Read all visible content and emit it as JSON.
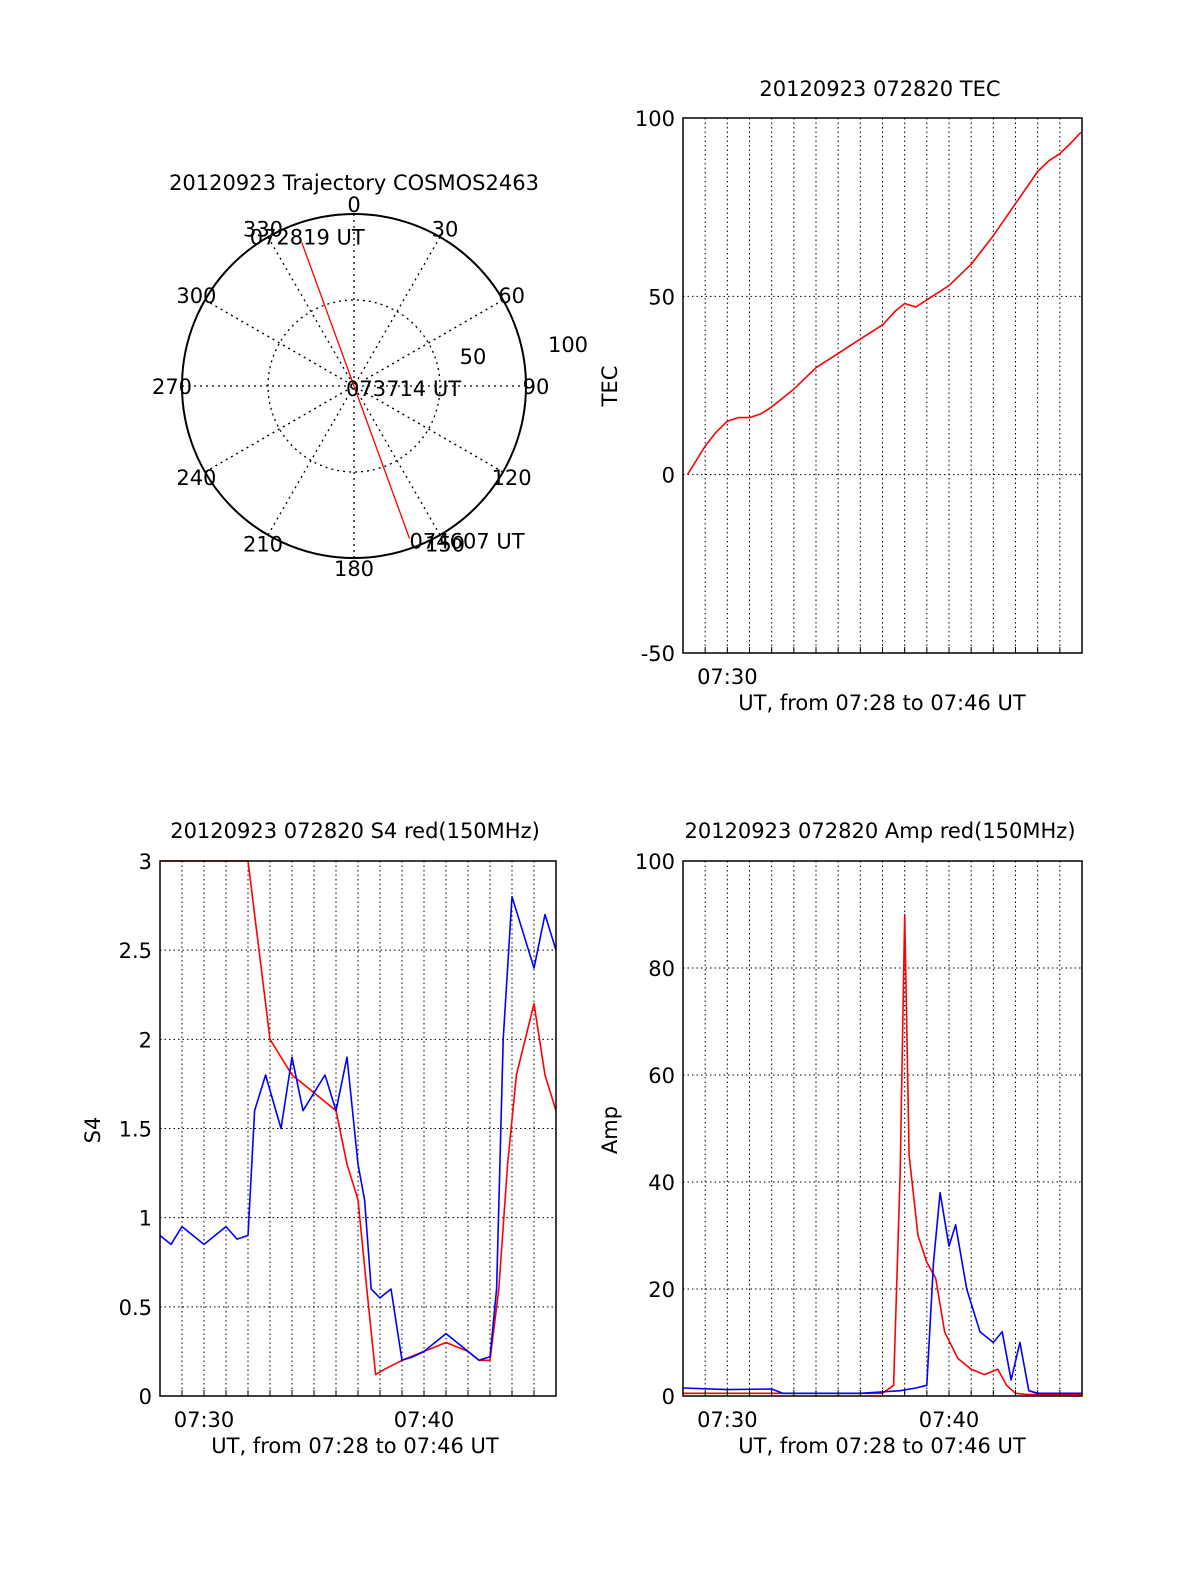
{
  "chart_data": [
    {
      "type": "polar",
      "title": "20120923 Trajectory COSMOS2463",
      "angle_labels": [
        "0",
        "30",
        "60",
        "90",
        "120",
        "150",
        "180",
        "210",
        "240",
        "270",
        "300",
        "330"
      ],
      "radial_labels": [
        "50",
        "100"
      ],
      "rlim": [
        0,
        100
      ],
      "grid": true,
      "trajectory": [
        {
          "label": "072819 UT",
          "azimuth": 340,
          "elevation": 10
        },
        {
          "label": "073714 UT",
          "azimuth": 155,
          "elevation": 96
        },
        {
          "label": "074607 UT",
          "azimuth": 160,
          "elevation": 5
        }
      ],
      "colors": {
        "trajectory": "#ff0000"
      }
    },
    {
      "type": "line",
      "title": "20120923 072820 TEC",
      "xlabel": "UT, from 07:28 to 07:46 UT",
      "ylabel": "TEC",
      "x_tick_labels": [
        "07:30"
      ],
      "y_tick_labels": [
        "-50",
        "0",
        "50",
        "100"
      ],
      "xlim_minutes": [
        28.0,
        46.0
      ],
      "ylim": [
        -50,
        100
      ],
      "grid": true,
      "series": [
        {
          "color": "#ff0000",
          "x_minutes": [
            28.2,
            28.5,
            29.0,
            29.5,
            30.0,
            30.5,
            31.0,
            31.5,
            32.0,
            33.0,
            34.0,
            35.0,
            36.0,
            37.0,
            37.6,
            38.0,
            38.5,
            39.0,
            40.0,
            41.0,
            42.0,
            43.0,
            44.0,
            44.5,
            45.0,
            45.5,
            45.95
          ],
          "values": [
            0,
            3,
            8,
            12,
            15,
            16,
            16,
            17,
            19,
            24,
            30,
            34,
            38,
            42,
            46,
            48,
            47,
            49,
            53,
            59,
            67,
            76,
            85,
            88,
            90,
            93,
            96
          ]
        }
      ]
    },
    {
      "type": "line",
      "title": "20120923 072820 S4 red(150MHz)",
      "xlabel": "UT, from 07:28 to 07:46 UT",
      "ylabel": "S4",
      "x_tick_labels": [
        "07:30",
        "07:40"
      ],
      "y_tick_labels": [
        "0",
        "0.5",
        "1",
        "1.5",
        "2",
        "2.5",
        "3"
      ],
      "xlim_minutes": [
        28.0,
        46.0
      ],
      "ylim": [
        0,
        3
      ],
      "grid": true,
      "series": [
        {
          "color": "#ff0000",
          "x_minutes": [
            28.0,
            29.0,
            30.0,
            31.0,
            32.0,
            32.5,
            33.0,
            34.0,
            35.0,
            36.0,
            36.5,
            37.0,
            37.4,
            37.8,
            38.2,
            39.0,
            40.0,
            41.0,
            42.0,
            42.5,
            43.0,
            43.4,
            43.8,
            44.2,
            45.0,
            45.5,
            46.0
          ],
          "values": [
            3.0,
            3.0,
            3.0,
            3.0,
            3.0,
            2.5,
            2.0,
            1.8,
            1.7,
            1.6,
            1.3,
            1.1,
            0.6,
            0.12,
            0.15,
            0.2,
            0.25,
            0.3,
            0.25,
            0.2,
            0.2,
            0.6,
            1.3,
            1.8,
            2.2,
            1.8,
            1.6
          ]
        },
        {
          "color": "#0000ff",
          "x_minutes": [
            28.0,
            28.5,
            29.0,
            29.5,
            30.0,
            30.5,
            31.0,
            31.5,
            32.0,
            32.3,
            32.8,
            33.5,
            34.0,
            34.5,
            35.0,
            35.5,
            36.0,
            36.5,
            37.0,
            37.3,
            37.6,
            38.0,
            38.5,
            39.0,
            39.5,
            40.0,
            40.5,
            41.0,
            41.5,
            42.0,
            42.5,
            43.0,
            43.3,
            43.6,
            44.0,
            44.5,
            45.0,
            45.5,
            46.0
          ],
          "values": [
            0.9,
            0.85,
            0.95,
            0.9,
            0.85,
            0.9,
            0.95,
            0.88,
            0.9,
            1.6,
            1.8,
            1.5,
            1.9,
            1.6,
            1.7,
            1.8,
            1.6,
            1.9,
            1.3,
            1.1,
            0.6,
            0.55,
            0.6,
            0.2,
            0.22,
            0.25,
            0.3,
            0.35,
            0.3,
            0.25,
            0.2,
            0.22,
            0.6,
            2.0,
            2.8,
            2.6,
            2.4,
            2.7,
            2.5
          ]
        }
      ]
    },
    {
      "type": "line",
      "title": "20120923 072820 Amp red(150MHz)",
      "xlabel": "UT, from 07:28 to 07:46 UT",
      "ylabel": "Amp",
      "x_tick_labels": [
        "07:30",
        "07:40"
      ],
      "y_tick_labels": [
        "0",
        "20",
        "40",
        "60",
        "80",
        "100"
      ],
      "xlim_minutes": [
        28.0,
        46.0
      ],
      "ylim": [
        0,
        100
      ],
      "grid": true,
      "series": [
        {
          "color": "#ff0000",
          "x_minutes": [
            28.0,
            34.0,
            37.0,
            37.5,
            37.8,
            38.0,
            38.2,
            38.6,
            39.0,
            39.4,
            39.8,
            40.4,
            41.0,
            41.6,
            42.2,
            42.6,
            43.0,
            43.5,
            46.0
          ],
          "values": [
            0.5,
            0.5,
            0.5,
            2,
            42,
            90,
            45,
            30,
            25,
            22,
            12,
            7,
            5,
            4,
            5,
            2,
            0.5,
            0.3,
            0.3
          ]
        },
        {
          "color": "#0000ff",
          "x_minutes": [
            28.0,
            30.0,
            32.0,
            32.5,
            34.0,
            36.0,
            37.8,
            38.5,
            39.0,
            39.3,
            39.6,
            40.0,
            40.3,
            40.8,
            41.4,
            42.0,
            42.4,
            42.8,
            43.2,
            43.6,
            44.0,
            46.0
          ],
          "values": [
            1.5,
            1.2,
            1.3,
            0.5,
            0.5,
            0.5,
            1.0,
            1.5,
            2.0,
            25,
            38,
            28,
            32,
            20,
            12,
            10,
            12,
            3,
            10,
            1,
            0.5,
            0.5
          ]
        }
      ]
    }
  ]
}
